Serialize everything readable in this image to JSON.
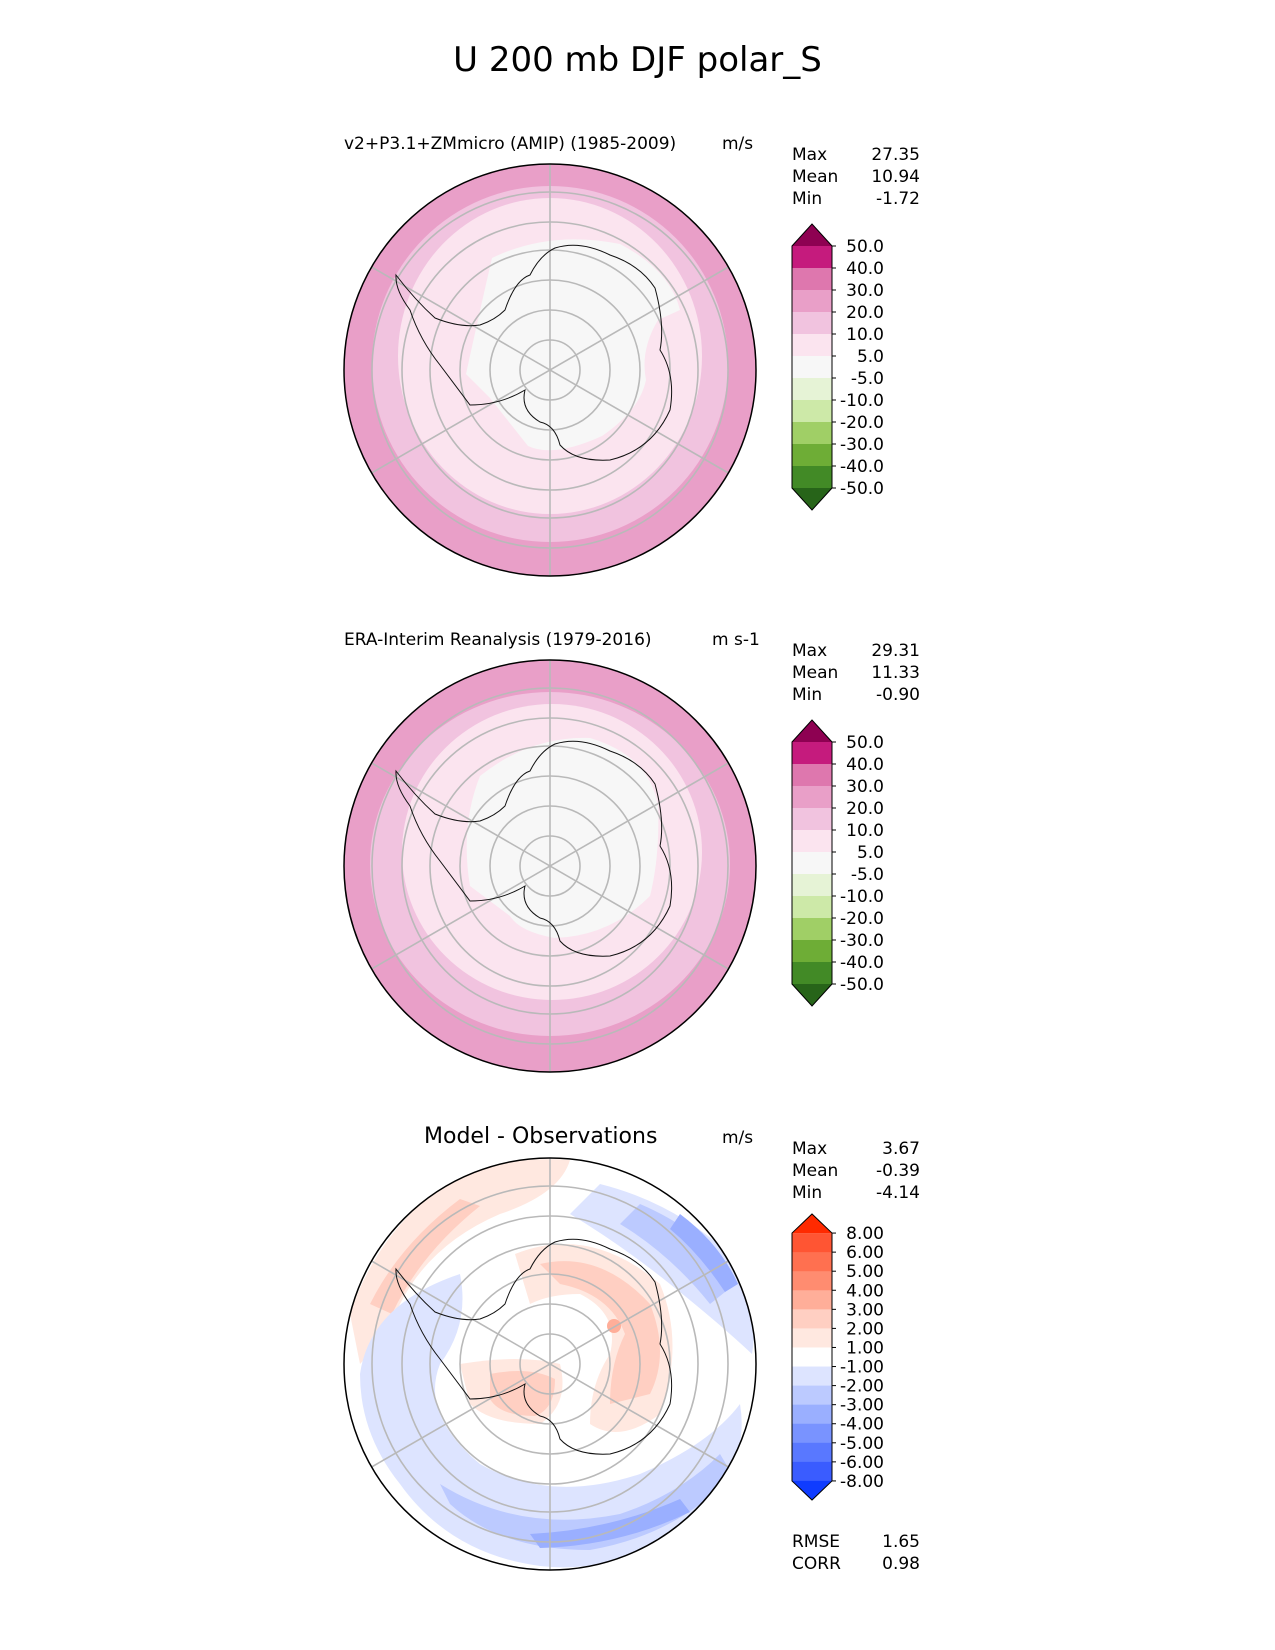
{
  "title": "U 200 mb DJF polar_S",
  "panels": [
    {
      "title": "v2+P3.1+ZMmicro (AMIP) (1985-2009)",
      "units": "m/s",
      "stats": [
        {
          "label": "Max",
          "value": "27.35"
        },
        {
          "label": "Mean",
          "value": "10.94"
        },
        {
          "label": "Min",
          "value": "-1.72"
        }
      ],
      "colorbar_ticks": [
        "50.0",
        "40.0",
        "30.0",
        "20.0",
        "10.0",
        "5.0",
        "-5.0",
        "-10.0",
        "-20.0",
        "-30.0",
        "-40.0",
        "-50.0"
      ],
      "colorbar_colors": [
        "#8e0152",
        "#c51b7d",
        "#de77ae",
        "#e99fc8",
        "#f1c3df",
        "#fbe4ef",
        "#f7f7f7",
        "#e6f3d6",
        "#cde9a8",
        "#a0cf66",
        "#6ead36",
        "#428a26",
        "#276419"
      ]
    },
    {
      "title": "ERA-Interim Reanalysis (1979-2016)",
      "units": "m s-1",
      "stats": [
        {
          "label": "Max",
          "value": "29.31"
        },
        {
          "label": "Mean",
          "value": "11.33"
        },
        {
          "label": "Min",
          "value": "-0.90"
        }
      ],
      "colorbar_ticks": [
        "50.0",
        "40.0",
        "30.0",
        "20.0",
        "10.0",
        "5.0",
        "-5.0",
        "-10.0",
        "-20.0",
        "-30.0",
        "-40.0",
        "-50.0"
      ],
      "colorbar_colors": [
        "#8e0152",
        "#c51b7d",
        "#de77ae",
        "#e99fc8",
        "#f1c3df",
        "#fbe4ef",
        "#f7f7f7",
        "#e6f3d6",
        "#cde9a8",
        "#a0cf66",
        "#6ead36",
        "#428a26",
        "#276419"
      ]
    },
    {
      "title": "Model - Observations",
      "units": "m/s",
      "stats": [
        {
          "label": "Max",
          "value": "3.67"
        },
        {
          "label": "Mean",
          "value": "-0.39"
        },
        {
          "label": "Min",
          "value": "-4.14"
        }
      ],
      "extra_stats": [
        {
          "label": "RMSE",
          "value": "1.65"
        },
        {
          "label": "CORR",
          "value": "0.98"
        }
      ],
      "colorbar_ticks": [
        "8.00",
        "6.00",
        "5.00",
        "4.00",
        "3.00",
        "2.00",
        "1.00",
        "-1.00",
        "-2.00",
        "-3.00",
        "-4.00",
        "-5.00",
        "-6.00",
        "-8.00"
      ],
      "colorbar_colors": [
        "#ff2a00",
        "#ff5533",
        "#ff7050",
        "#ff8c70",
        "#ffae99",
        "#ffcfc2",
        "#ffe8e0",
        "#ffffff",
        "#dde4ff",
        "#bccaff",
        "#9aafff",
        "#7993ff",
        "#5978ff",
        "#3a5cff",
        "#0f3cff"
      ]
    }
  ],
  "chart_data": [
    {
      "type": "heatmap",
      "projection": "south-polar-stereographic",
      "title": "v2+P3.1+ZMmicro (AMIP) (1985-2009)",
      "units": "m/s",
      "levels": [
        -50,
        -40,
        -30,
        -20,
        -10,
        -5,
        5,
        10,
        20,
        30,
        40,
        50
      ],
      "max": 27.35,
      "mean": 10.94,
      "min": -1.72
    },
    {
      "type": "heatmap",
      "projection": "south-polar-stereographic",
      "title": "ERA-Interim Reanalysis (1979-2016)",
      "units": "m s-1",
      "levels": [
        -50,
        -40,
        -30,
        -20,
        -10,
        -5,
        5,
        10,
        20,
        30,
        40,
        50
      ],
      "max": 29.31,
      "mean": 11.33,
      "min": -0.9
    },
    {
      "type": "heatmap",
      "projection": "south-polar-stereographic",
      "title": "Model - Observations",
      "units": "m/s",
      "levels": [
        -8,
        -6,
        -5,
        -4,
        -3,
        -2,
        -1,
        1,
        2,
        3,
        4,
        5,
        6,
        8
      ],
      "max": 3.67,
      "mean": -0.39,
      "min": -4.14,
      "rmse": 1.65,
      "corr": 0.98
    }
  ]
}
